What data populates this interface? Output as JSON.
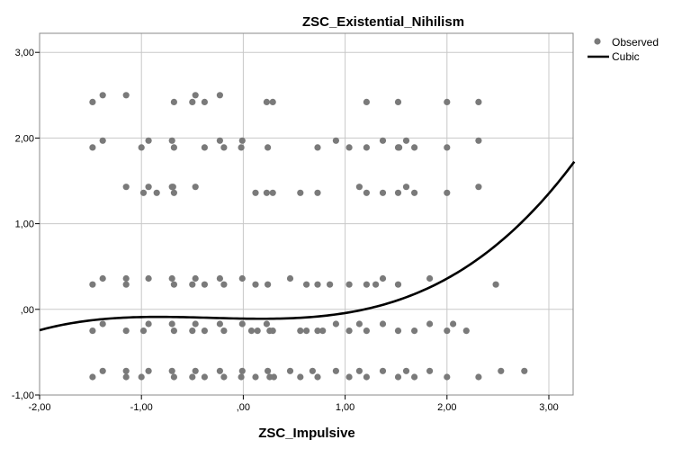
{
  "chart_data": {
    "type": "scatter",
    "title": "ZSC_Existential_Nihilism",
    "xlabel": "ZSC_Impulsive",
    "ylabel": "",
    "xlim": [
      -2.0,
      3.25
    ],
    "ylim": [
      -1.0,
      3.25
    ],
    "x_ticks": [
      -2,
      -1,
      0,
      1,
      2,
      3
    ],
    "x_tick_labels": [
      "-2,00",
      "-1,00",
      ",00",
      "1,00",
      "2,00",
      "3,00"
    ],
    "y_ticks": [
      -1,
      0,
      1,
      2,
      3
    ],
    "y_tick_labels": [
      "-1,00",
      ",00",
      "1,00",
      "2,00",
      "3,00"
    ],
    "grid": true,
    "legend_position": "top-right",
    "colors": {
      "points": "#7a7a7a",
      "fit": "#000000",
      "grid": "#c8c8c8"
    },
    "series": [
      {
        "name": "Observed",
        "kind": "scatter",
        "points": [
          [
            -1.48,
            2.42
          ],
          [
            -1.38,
            2.5
          ],
          [
            -1.15,
            2.5
          ],
          [
            -0.68,
            2.42
          ],
          [
            -0.5,
            2.42
          ],
          [
            -0.47,
            2.5
          ],
          [
            -0.38,
            2.42
          ],
          [
            -0.23,
            2.5
          ],
          [
            0.23,
            2.42
          ],
          [
            0.29,
            2.42
          ],
          [
            1.21,
            2.42
          ],
          [
            1.52,
            2.42
          ],
          [
            2.0,
            2.42
          ],
          [
            2.31,
            2.42
          ],
          [
            -1.48,
            1.89
          ],
          [
            -1.38,
            1.97
          ],
          [
            -1.0,
            1.89
          ],
          [
            -0.93,
            1.97
          ],
          [
            -0.7,
            1.97
          ],
          [
            -0.68,
            1.89
          ],
          [
            -0.38,
            1.89
          ],
          [
            -0.23,
            1.97
          ],
          [
            -0.19,
            1.89
          ],
          [
            -0.02,
            1.89
          ],
          [
            -0.01,
            1.97
          ],
          [
            0.24,
            1.89
          ],
          [
            0.73,
            1.89
          ],
          [
            0.91,
            1.97
          ],
          [
            1.04,
            1.89
          ],
          [
            1.21,
            1.89
          ],
          [
            1.37,
            1.97
          ],
          [
            1.52,
            1.89
          ],
          [
            1.53,
            1.89
          ],
          [
            1.6,
            1.97
          ],
          [
            1.68,
            1.89
          ],
          [
            2.0,
            1.89
          ],
          [
            2.31,
            1.97
          ],
          [
            -1.15,
            1.43
          ],
          [
            -0.93,
            1.43
          ],
          [
            -0.98,
            1.36
          ],
          [
            -0.85,
            1.36
          ],
          [
            -0.7,
            1.43
          ],
          [
            -0.69,
            1.43
          ],
          [
            -0.68,
            1.36
          ],
          [
            -0.47,
            1.43
          ],
          [
            0.12,
            1.36
          ],
          [
            0.23,
            1.36
          ],
          [
            0.29,
            1.36
          ],
          [
            0.56,
            1.36
          ],
          [
            0.73,
            1.36
          ],
          [
            1.14,
            1.43
          ],
          [
            1.21,
            1.36
          ],
          [
            1.37,
            1.36
          ],
          [
            1.52,
            1.36
          ],
          [
            1.6,
            1.43
          ],
          [
            1.68,
            1.36
          ],
          [
            2.0,
            1.36
          ],
          [
            2.31,
            1.43
          ],
          [
            -1.48,
            0.29
          ],
          [
            -1.38,
            0.36
          ],
          [
            -1.15,
            0.36
          ],
          [
            -1.15,
            0.29
          ],
          [
            -0.93,
            0.36
          ],
          [
            -0.7,
            0.36
          ],
          [
            -0.68,
            0.29
          ],
          [
            -0.5,
            0.29
          ],
          [
            -0.47,
            0.36
          ],
          [
            -0.38,
            0.29
          ],
          [
            -0.23,
            0.36
          ],
          [
            -0.19,
            0.29
          ],
          [
            -0.01,
            0.36
          ],
          [
            0.12,
            0.29
          ],
          [
            0.24,
            0.29
          ],
          [
            0.46,
            0.36
          ],
          [
            0.62,
            0.29
          ],
          [
            0.73,
            0.29
          ],
          [
            0.85,
            0.29
          ],
          [
            1.04,
            0.29
          ],
          [
            1.21,
            0.29
          ],
          [
            1.3,
            0.29
          ],
          [
            1.37,
            0.36
          ],
          [
            1.52,
            0.29
          ],
          [
            1.83,
            0.36
          ],
          [
            2.48,
            0.29
          ],
          [
            -1.48,
            -0.25
          ],
          [
            -1.38,
            -0.17
          ],
          [
            -1.15,
            -0.25
          ],
          [
            -0.98,
            -0.25
          ],
          [
            -0.93,
            -0.17
          ],
          [
            -0.7,
            -0.17
          ],
          [
            -0.68,
            -0.25
          ],
          [
            -0.5,
            -0.25
          ],
          [
            -0.47,
            -0.17
          ],
          [
            -0.38,
            -0.25
          ],
          [
            -0.23,
            -0.17
          ],
          [
            -0.19,
            -0.25
          ],
          [
            -0.01,
            -0.17
          ],
          [
            0.08,
            -0.25
          ],
          [
            0.14,
            -0.25
          ],
          [
            0.23,
            -0.17
          ],
          [
            0.26,
            -0.25
          ],
          [
            0.29,
            -0.25
          ],
          [
            0.56,
            -0.25
          ],
          [
            0.62,
            -0.25
          ],
          [
            0.73,
            -0.25
          ],
          [
            0.78,
            -0.25
          ],
          [
            0.91,
            -0.17
          ],
          [
            1.04,
            -0.25
          ],
          [
            1.14,
            -0.17
          ],
          [
            1.21,
            -0.25
          ],
          [
            1.37,
            -0.17
          ],
          [
            1.52,
            -0.25
          ],
          [
            1.68,
            -0.25
          ],
          [
            1.83,
            -0.17
          ],
          [
            2.0,
            -0.25
          ],
          [
            2.06,
            -0.17
          ],
          [
            2.19,
            -0.25
          ],
          [
            -1.48,
            -0.79
          ],
          [
            -1.38,
            -0.72
          ],
          [
            -1.15,
            -0.72
          ],
          [
            -1.15,
            -0.79
          ],
          [
            -1.0,
            -0.79
          ],
          [
            -0.93,
            -0.72
          ],
          [
            -0.7,
            -0.72
          ],
          [
            -0.68,
            -0.79
          ],
          [
            -0.5,
            -0.79
          ],
          [
            -0.47,
            -0.72
          ],
          [
            -0.38,
            -0.79
          ],
          [
            -0.23,
            -0.72
          ],
          [
            -0.19,
            -0.79
          ],
          [
            -0.01,
            -0.72
          ],
          [
            -0.02,
            -0.79
          ],
          [
            0.12,
            -0.79
          ],
          [
            0.24,
            -0.72
          ],
          [
            0.26,
            -0.79
          ],
          [
            0.3,
            -0.79
          ],
          [
            0.46,
            -0.72
          ],
          [
            0.56,
            -0.79
          ],
          [
            0.68,
            -0.72
          ],
          [
            0.73,
            -0.79
          ],
          [
            0.91,
            -0.72
          ],
          [
            1.04,
            -0.79
          ],
          [
            1.14,
            -0.72
          ],
          [
            1.21,
            -0.79
          ],
          [
            1.37,
            -0.72
          ],
          [
            1.52,
            -0.79
          ],
          [
            1.6,
            -0.72
          ],
          [
            1.68,
            -0.79
          ],
          [
            1.83,
            -0.72
          ],
          [
            2.0,
            -0.79
          ],
          [
            2.31,
            -0.79
          ],
          [
            2.53,
            -0.72
          ],
          [
            2.76,
            -0.72
          ]
        ]
      },
      {
        "name": "Cubic",
        "kind": "fit-line",
        "coefficients": {
          "a": -0.108,
          "b": -0.019,
          "c": 0.0415,
          "d": 0.0424
        },
        "x_range": [
          -2.0,
          3.25
        ]
      }
    ]
  }
}
